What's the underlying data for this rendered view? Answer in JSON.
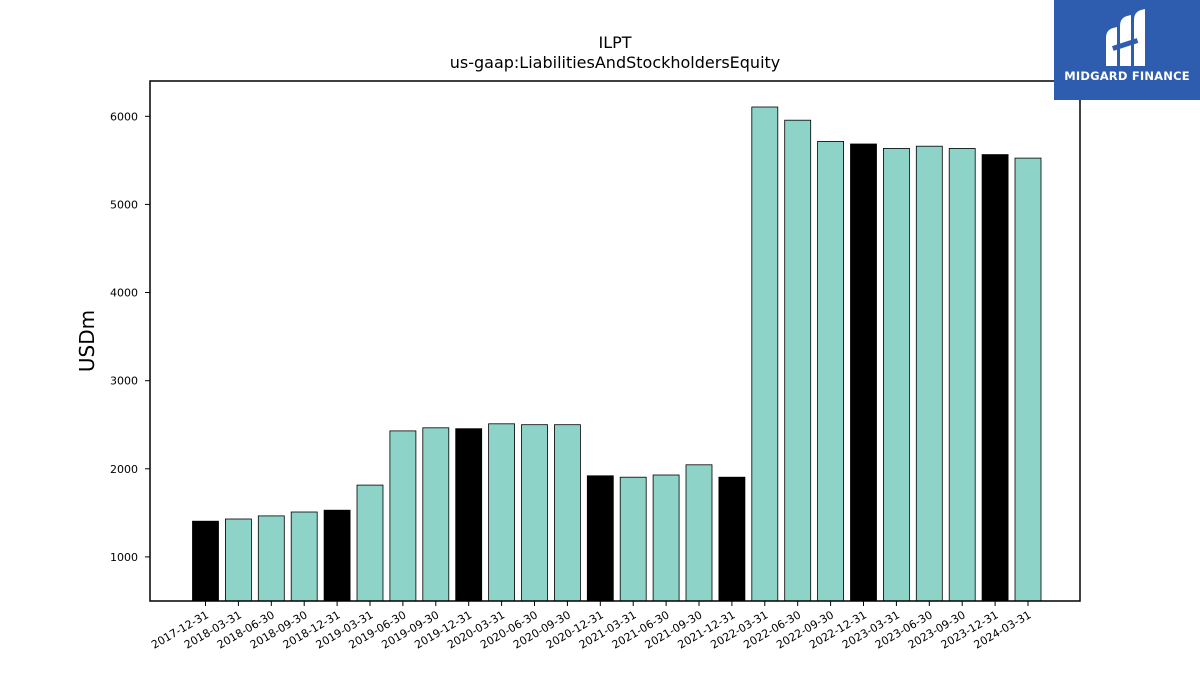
{
  "chart_data": {
    "type": "bar",
    "title": "ILPT",
    "subtitle": "us-gaap:LiabilitiesAndStockholdersEquity",
    "ylabel": "USDm",
    "xlabel": "",
    "ylim": [
      500,
      6400
    ],
    "yticks": [
      1000,
      2000,
      3000,
      4000,
      5000,
      6000
    ],
    "grid": false,
    "categories": [
      "2017-12-31",
      "2018-03-31",
      "2018-06-30",
      "2018-09-30",
      "2018-12-31",
      "2019-03-31",
      "2019-06-30",
      "2019-09-30",
      "2019-12-31",
      "2020-03-31",
      "2020-06-30",
      "2020-09-30",
      "2020-12-31",
      "2021-03-31",
      "2021-06-30",
      "2021-09-30",
      "2021-12-31",
      "2022-03-31",
      "2022-06-30",
      "2022-09-30",
      "2022-12-31",
      "2023-03-31",
      "2023-06-30",
      "2023-09-30",
      "2023-12-31",
      "2024-03-31"
    ],
    "values": [
      1405,
      1430,
      1465,
      1510,
      1530,
      1815,
      2430,
      2465,
      2455,
      2510,
      2500,
      2500,
      1920,
      1905,
      1930,
      2045,
      1905,
      6105,
      5955,
      5715,
      5685,
      5635,
      5660,
      5635,
      5565,
      5525
    ],
    "bar_colors": [
      "#000000",
      "#8dd3c7",
      "#8dd3c7",
      "#8dd3c7",
      "#000000",
      "#8dd3c7",
      "#8dd3c7",
      "#8dd3c7",
      "#000000",
      "#8dd3c7",
      "#8dd3c7",
      "#8dd3c7",
      "#000000",
      "#8dd3c7",
      "#8dd3c7",
      "#8dd3c7",
      "#000000",
      "#8dd3c7",
      "#8dd3c7",
      "#8dd3c7",
      "#000000",
      "#8dd3c7",
      "#8dd3c7",
      "#8dd3c7",
      "#000000",
      "#8dd3c7"
    ]
  },
  "colors": {
    "quarter_bar": "#8dd3c7",
    "year_end_bar": "#000000",
    "logo_background": "#2e5caf"
  },
  "logo": {
    "icon": "midgard-logo-icon",
    "text": "MIDGARD FINANCE"
  }
}
